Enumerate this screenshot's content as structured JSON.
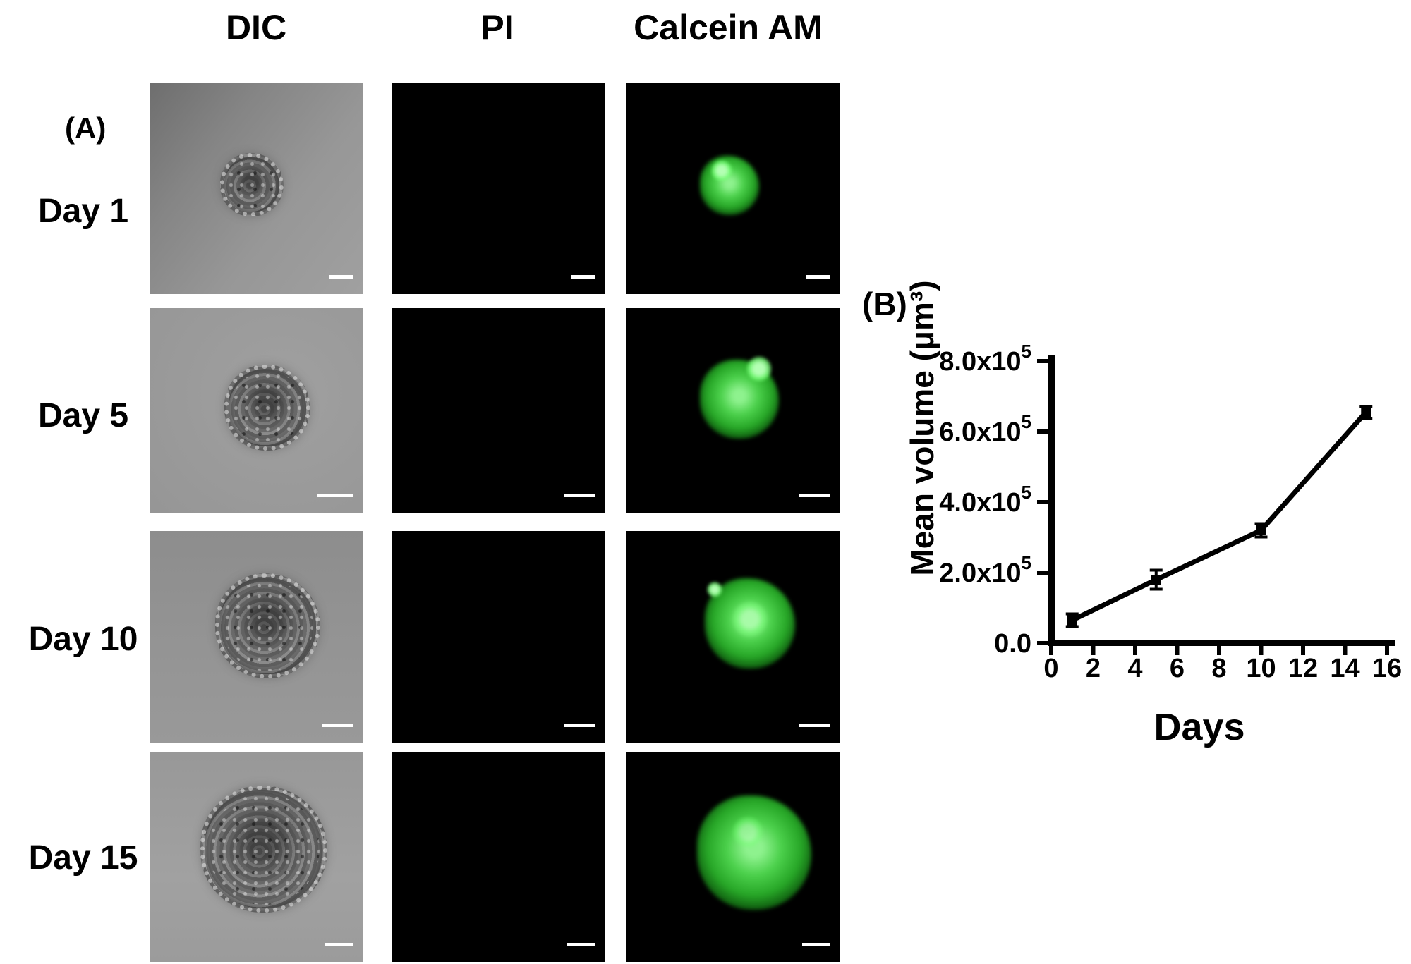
{
  "figure": {
    "panel_a_label": "(A)",
    "panel_b_label": "(B)",
    "column_headers": [
      "DIC",
      "PI",
      "Calcein AM"
    ],
    "row_labels": [
      "Day 1",
      "Day 5",
      "Day 10",
      "Day 15"
    ]
  },
  "chart_data": {
    "type": "line",
    "title": "",
    "xlabel": "Days",
    "ylabel": "Mean volume (μm³)",
    "x": [
      1,
      5,
      10,
      15
    ],
    "values": [
      65000,
      180000,
      320000,
      655000
    ],
    "yerr": [
      18000,
      27000,
      19000,
      17000
    ],
    "xlim": [
      0,
      16
    ],
    "ylim": [
      0,
      800000
    ],
    "x_ticks": [
      0,
      2,
      4,
      6,
      8,
      10,
      12,
      14,
      16
    ],
    "y_ticks": [
      {
        "value": 800000,
        "base": "8.0x10",
        "exp": "5"
      },
      {
        "value": 600000,
        "base": "6.0x10",
        "exp": "5"
      },
      {
        "value": 400000,
        "base": "4.0x10",
        "exp": "5"
      },
      {
        "value": 200000,
        "base": "2.0x10",
        "exp": "5"
      },
      {
        "value": 0,
        "base": "0.0",
        "exp": ""
      }
    ],
    "marker": "square",
    "line_color": "#000000",
    "grid": false,
    "legend_position": null
  },
  "colors": {
    "background": "#ffffff",
    "text": "#000000",
    "calcein_green": "#2fbf2f",
    "dic_gray": "#949494",
    "scale_bar": "#ffffff"
  }
}
